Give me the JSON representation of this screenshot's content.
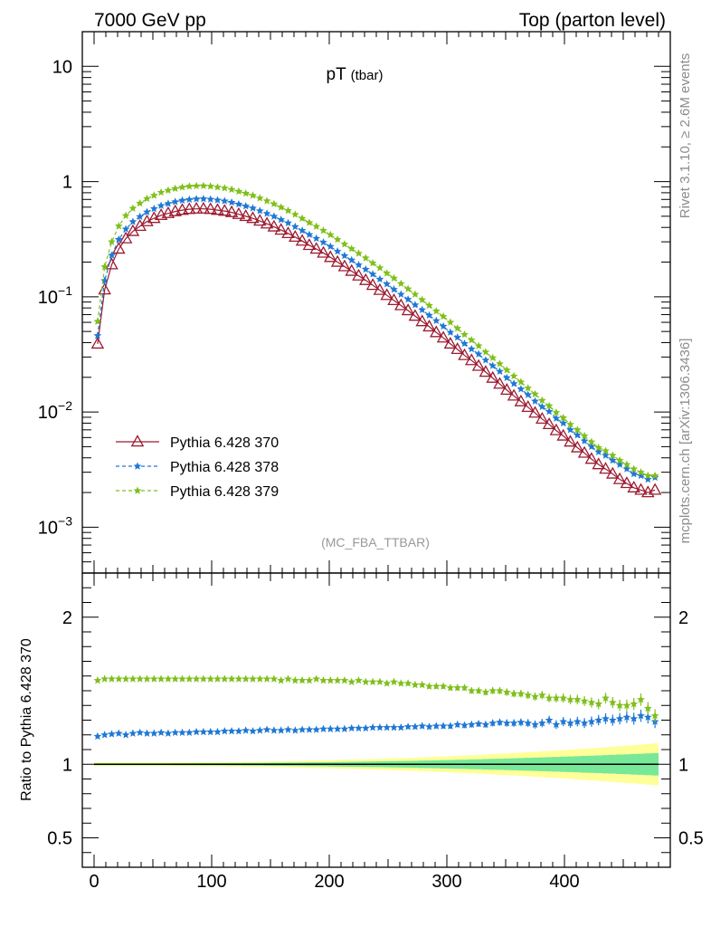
{
  "header": {
    "left": "7000 GeV pp",
    "right": "Top (parton level)"
  },
  "side": {
    "rivet": "Rivet 3.1.10, ≥ 2.6M events",
    "mcplots": "mcplots.cern.ch [arXiv:1306.3436]"
  },
  "colors": {
    "s370": "#9b1b30",
    "s378": "#1f78d4",
    "s379": "#7fbf1a",
    "band_outer": "#ffff99",
    "band_inner": "#77e898"
  },
  "chart_data": [
    {
      "type": "line",
      "title": "pT",
      "title_sub": "(tbar)",
      "annotation": "(MC_FBA_TTBAR)",
      "yscale": "log",
      "ylim": [
        0.0004,
        20
      ],
      "xlim": [
        -10,
        490
      ],
      "yticks": [
        {
          "v": 10,
          "base": "10",
          "exp": ""
        },
        {
          "v": 1,
          "base": "1",
          "exp": ""
        },
        {
          "v": 0.1,
          "base": "10",
          "exp": "−1"
        },
        {
          "v": 0.01,
          "base": "10",
          "exp": "−2"
        },
        {
          "v": 0.001,
          "base": "10",
          "exp": "−3"
        }
      ],
      "legend_position": "lower-left",
      "series": [
        {
          "name": "Pythia 6.428 370",
          "marker": "triangle",
          "dashed": false,
          "values": [
            0.039,
            0.115,
            0.19,
            0.26,
            0.32,
            0.37,
            0.41,
            0.45,
            0.48,
            0.51,
            0.53,
            0.55,
            0.565,
            0.575,
            0.58,
            0.58,
            0.575,
            0.565,
            0.555,
            0.54,
            0.52,
            0.5,
            0.48,
            0.455,
            0.43,
            0.405,
            0.38,
            0.355,
            0.33,
            0.305,
            0.28,
            0.26,
            0.24,
            0.22,
            0.2,
            0.183,
            0.167,
            0.152,
            0.139,
            0.126,
            0.114,
            0.103,
            0.093,
            0.084,
            0.076,
            0.068,
            0.061,
            0.055,
            0.049,
            0.044,
            0.039,
            0.035,
            0.031,
            0.028,
            0.025,
            0.0222,
            0.0197,
            0.0175,
            0.0155,
            0.0138,
            0.0123,
            0.011,
            0.0098,
            0.0087,
            0.0078,
            0.0069,
            0.0062,
            0.0055,
            0.0049,
            0.0044,
            0.0039,
            0.0035,
            0.0032,
            0.0029,
            0.0026,
            0.0024,
            0.0022,
            0.0021,
            0.002,
            0.0021
          ]
        },
        {
          "name": "Pythia 6.428 378",
          "marker": "star",
          "dashed": true,
          "values": [
            0.046,
            0.138,
            0.229,
            0.314,
            0.387,
            0.448,
            0.496,
            0.545,
            0.581,
            0.618,
            0.643,
            0.668,
            0.687,
            0.699,
            0.706,
            0.707,
            0.701,
            0.69,
            0.678,
            0.66,
            0.636,
            0.612,
            0.588,
            0.557,
            0.528,
            0.498,
            0.467,
            0.437,
            0.406,
            0.376,
            0.346,
            0.321,
            0.297,
            0.273,
            0.248,
            0.227,
            0.208,
            0.189,
            0.173,
            0.157,
            0.142,
            0.129,
            0.116,
            0.105,
            0.095,
            0.085,
            0.077,
            0.069,
            0.062,
            0.0554,
            0.0491,
            0.0444,
            0.0392,
            0.0352,
            0.0318,
            0.0282,
            0.0252,
            0.0225,
            0.0198,
            0.0176,
            0.0158,
            0.0141,
            0.0124,
            0.0111,
            0.0101,
            0.0088,
            0.008,
            0.007,
            0.0063,
            0.0056,
            0.005,
            0.0045,
            0.0042,
            0.0038,
            0.0035,
            0.0032,
            0.0029,
            0.0028,
            0.0026,
            0.0027
          ]
        },
        {
          "name": "Pythia 6.428 379",
          "marker": "star",
          "dashed": true,
          "values": [
            0.061,
            0.182,
            0.3,
            0.411,
            0.506,
            0.585,
            0.648,
            0.711,
            0.758,
            0.806,
            0.838,
            0.869,
            0.894,
            0.91,
            0.917,
            0.918,
            0.91,
            0.893,
            0.878,
            0.854,
            0.822,
            0.79,
            0.758,
            0.718,
            0.679,
            0.639,
            0.598,
            0.56,
            0.518,
            0.479,
            0.44,
            0.408,
            0.376,
            0.345,
            0.314,
            0.286,
            0.261,
            0.238,
            0.217,
            0.196,
            0.178,
            0.16,
            0.145,
            0.13,
            0.117,
            0.105,
            0.094,
            0.084,
            0.075,
            0.0675,
            0.06,
            0.0532,
            0.047,
            0.0421,
            0.0375,
            0.0331,
            0.0295,
            0.0262,
            0.0231,
            0.0205,
            0.0182,
            0.0161,
            0.0143,
            0.0126,
            0.0113,
            0.0099,
            0.0089,
            0.0078,
            0.007,
            0.0062,
            0.0055,
            0.0049,
            0.0046,
            0.0042,
            0.0038,
            0.0035,
            0.0032,
            0.003,
            0.0028,
            0.0028
          ]
        }
      ]
    },
    {
      "type": "line",
      "ylabel": "Ratio to Pythia 6.428 370",
      "xlim": [
        -10,
        490
      ],
      "ylim": [
        0.3,
        2.3
      ],
      "xticks": [
        0,
        100,
        200,
        300,
        400
      ],
      "yticks": [
        0.5,
        1,
        2
      ],
      "reference_line": 1,
      "series": [
        {
          "name": "Pythia 6.428 378",
          "marker": "star",
          "values": [
            1.19,
            1.2,
            1.205,
            1.21,
            1.2,
            1.21,
            1.215,
            1.21,
            1.21,
            1.215,
            1.21,
            1.215,
            1.215,
            1.215,
            1.22,
            1.22,
            1.22,
            1.22,
            1.225,
            1.225,
            1.225,
            1.23,
            1.225,
            1.23,
            1.235,
            1.23,
            1.23,
            1.235,
            1.23,
            1.235,
            1.235,
            1.235,
            1.24,
            1.24,
            1.24,
            1.24,
            1.245,
            1.245,
            1.245,
            1.25,
            1.25,
            1.25,
            1.25,
            1.25,
            1.255,
            1.255,
            1.26,
            1.255,
            1.26,
            1.26,
            1.26,
            1.27,
            1.265,
            1.27,
            1.275,
            1.27,
            1.28,
            1.285,
            1.28,
            1.28,
            1.285,
            1.28,
            1.27,
            1.28,
            1.3,
            1.27,
            1.29,
            1.28,
            1.29,
            1.28,
            1.29,
            1.3,
            1.31,
            1.3,
            1.31,
            1.32,
            1.31,
            1.33,
            1.32,
            1.29
          ]
        },
        {
          "name": "Pythia 6.428 379",
          "marker": "star",
          "values": [
            1.57,
            1.58,
            1.58,
            1.58,
            1.58,
            1.58,
            1.58,
            1.58,
            1.58,
            1.58,
            1.58,
            1.58,
            1.58,
            1.58,
            1.58,
            1.58,
            1.58,
            1.58,
            1.58,
            1.58,
            1.58,
            1.58,
            1.58,
            1.58,
            1.58,
            1.58,
            1.57,
            1.58,
            1.57,
            1.57,
            1.57,
            1.58,
            1.57,
            1.57,
            1.57,
            1.57,
            1.56,
            1.57,
            1.56,
            1.56,
            1.56,
            1.55,
            1.56,
            1.55,
            1.55,
            1.54,
            1.54,
            1.53,
            1.53,
            1.53,
            1.52,
            1.52,
            1.52,
            1.5,
            1.5,
            1.49,
            1.5,
            1.5,
            1.49,
            1.48,
            1.48,
            1.47,
            1.46,
            1.47,
            1.45,
            1.45,
            1.45,
            1.44,
            1.44,
            1.43,
            1.42,
            1.41,
            1.45,
            1.42,
            1.4,
            1.4,
            1.41,
            1.44,
            1.38,
            1.33
          ]
        }
      ]
    }
  ]
}
